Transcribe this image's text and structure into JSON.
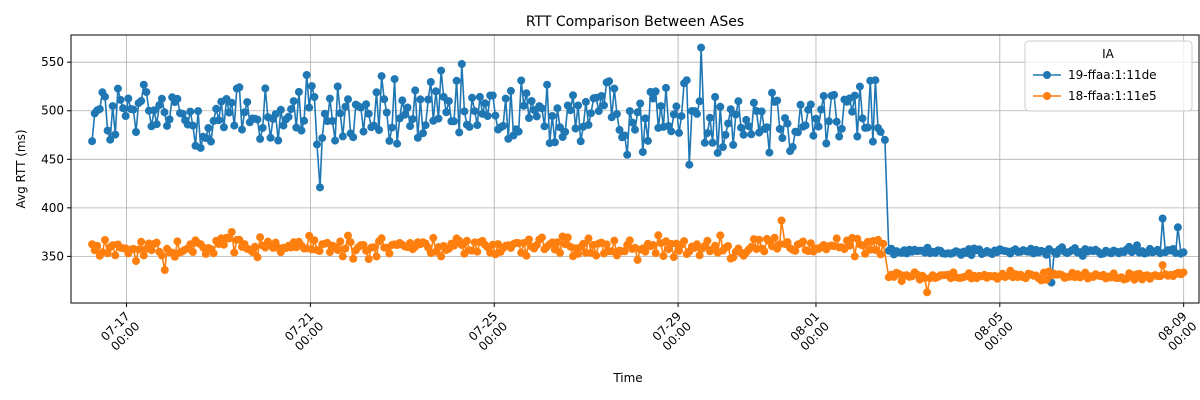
{
  "chart_data": {
    "type": "line",
    "title": "RTT Comparison Between ASes",
    "xlabel": "Time",
    "ylabel": "Avg RTT (ms)",
    "x_ticks": [
      "07-17\n00:00",
      "07-21\n00:00",
      "07-25\n00:00",
      "07-29\n00:00",
      "08-01\n00:00",
      "08-05\n00:00",
      "08-09\n00:00"
    ],
    "y_ticks": [
      350,
      400,
      450,
      500,
      550
    ],
    "ylim": [
      302,
      578
    ],
    "xlim_days": [
      "2024-07-15 19:00",
      "2024-08-09 08:00"
    ],
    "grid": true,
    "legend_title": "IA",
    "legend_position": "top-right",
    "series": [
      {
        "name": "19-ffaa:1:11de",
        "color": "#1f77b4",
        "segments": [
          {
            "start": "07-16 06:00",
            "end": "08-02 12:00",
            "mean": 495,
            "spread": 28
          },
          {
            "start": "08-02 14:00",
            "end": "08-09 00:00",
            "mean": 355,
            "spread": 3
          }
        ],
        "notable_points": [
          {
            "x": "07-21 05:00",
            "y": 421
          },
          {
            "x": "07-29 12:00",
            "y": 565
          },
          {
            "x": "08-02 12:00",
            "y": 470
          },
          {
            "x": "08-06 03:00",
            "y": 323
          },
          {
            "x": "08-08 13:00",
            "y": 389
          },
          {
            "x": "08-08 21:00",
            "y": 380
          }
        ]
      },
      {
        "name": "18-ffaa:1:11e5",
        "color": "#ff7f0e",
        "segments": [
          {
            "start": "07-16 06:00",
            "end": "08-02 12:00",
            "mean": 360,
            "spread": 8
          },
          {
            "start": "08-02 14:00",
            "end": "08-09 00:00",
            "mean": 330,
            "spread": 3
          }
        ],
        "notable_points": [
          {
            "x": "07-17 20:00",
            "y": 336
          },
          {
            "x": "07-31 06:00",
            "y": 387
          },
          {
            "x": "08-03 10:00",
            "y": 313
          },
          {
            "x": "08-08 13:00",
            "y": 341
          }
        ]
      }
    ]
  }
}
